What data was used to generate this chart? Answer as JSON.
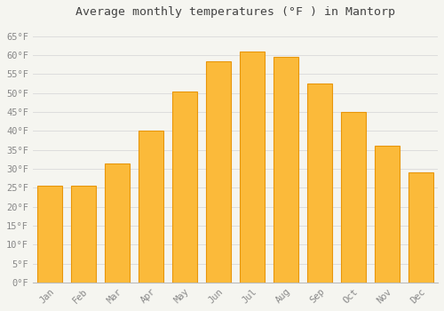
{
  "title": "Average monthly temperatures (°F ) in Mantorp",
  "months": [
    "Jan",
    "Feb",
    "Mar",
    "Apr",
    "May",
    "Jun",
    "Jul",
    "Aug",
    "Sep",
    "Oct",
    "Nov",
    "Dec"
  ],
  "values": [
    25.5,
    25.5,
    31.5,
    40.0,
    50.5,
    58.5,
    61.0,
    59.5,
    52.5,
    45.0,
    36.0,
    29.0
  ],
  "bar_color": "#FBBA3A",
  "bar_edge_color": "#E8960A",
  "background_color": "#F5F5F0",
  "plot_bg_color": "#F5F5F0",
  "grid_color": "#DDDDDD",
  "tick_label_color": "#888888",
  "title_color": "#444444",
  "ylim": [
    0,
    68
  ],
  "yticks": [
    0,
    5,
    10,
    15,
    20,
    25,
    30,
    35,
    40,
    45,
    50,
    55,
    60,
    65
  ],
  "title_fontsize": 9.5,
  "tick_fontsize": 7.5
}
